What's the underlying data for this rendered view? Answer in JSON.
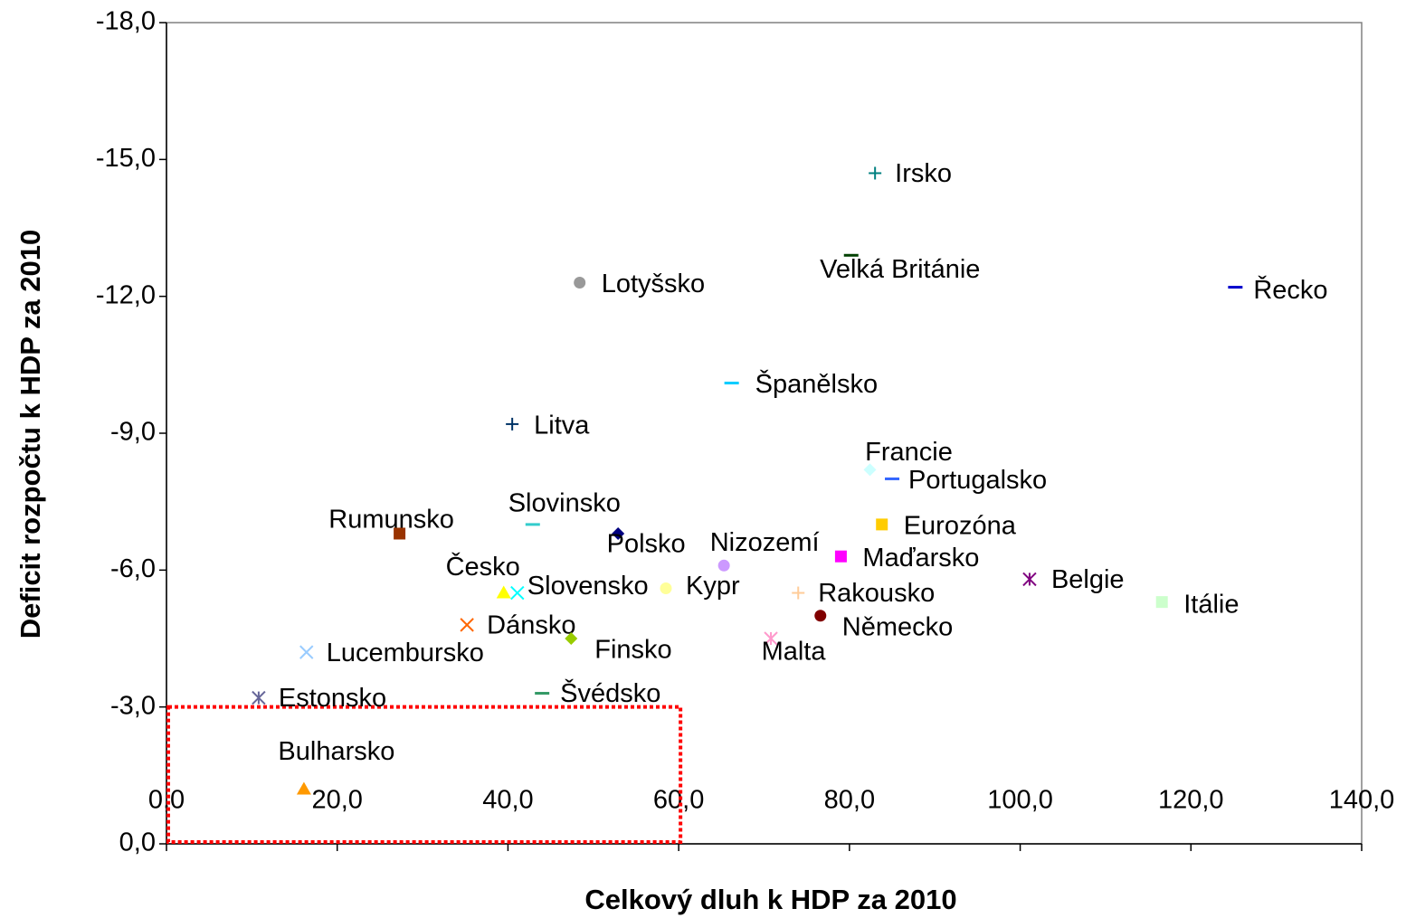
{
  "chart_data": {
    "type": "scatter",
    "xlabel": "Celkový dluh k HDP za 2010",
    "ylabel": "Deficit rozpočtu k HDP za 2010",
    "xlim": [
      0,
      140
    ],
    "xticks": [
      {
        "value": 0,
        "label": "0,0"
      },
      {
        "value": 20,
        "label": "20,0"
      },
      {
        "value": 40,
        "label": "40,0"
      },
      {
        "value": 60,
        "label": "60,0"
      },
      {
        "value": 80,
        "label": "80,0"
      },
      {
        "value": 100,
        "label": "100,0"
      },
      {
        "value": 120,
        "label": "120,0"
      },
      {
        "value": 140,
        "label": "140,0"
      }
    ],
    "ylim": [
      0,
      -18
    ],
    "yticks": [
      {
        "value": 0,
        "label": "0,0"
      },
      {
        "value": -3,
        "label": "-3,0"
      },
      {
        "value": -6,
        "label": "-6,0"
      },
      {
        "value": -9,
        "label": "-9,0"
      },
      {
        "value": -12,
        "label": "-12,0"
      },
      {
        "value": -15,
        "label": "-15,0"
      },
      {
        "value": -18,
        "label": "-18,0"
      }
    ],
    "highlight": {
      "x": [
        0,
        60
      ],
      "y": [
        0,
        -3
      ],
      "color": "#ff0000"
    },
    "series": [
      {
        "name": "Irsko",
        "color": "#008080",
        "marker": "plus",
        "x": [
          83.0
        ],
        "values": [
          -14.7
        ]
      },
      {
        "name": "Velká Británie",
        "color": "#004000",
        "marker": "dash",
        "x": [
          80.2
        ],
        "values": [
          -12.9
        ]
      },
      {
        "name": "Řecko",
        "color": "#0000cc",
        "marker": "dash",
        "x": [
          125.2
        ],
        "values": [
          -12.2
        ]
      },
      {
        "name": "Lotyšsko",
        "color": "#999999",
        "marker": "circle",
        "x": [
          48.4
        ],
        "values": [
          -12.3
        ]
      },
      {
        "name": "Španělsko",
        "color": "#00ccff",
        "marker": "dash",
        "x": [
          66.2
        ],
        "values": [
          -10.1
        ]
      },
      {
        "name": "Litva",
        "color": "#003366",
        "marker": "plus",
        "x": [
          40.5
        ],
        "values": [
          -9.2
        ]
      },
      {
        "name": "Francie",
        "color": "#ccffff",
        "marker": "diamond",
        "x": [
          82.4
        ],
        "values": [
          -8.2
        ]
      },
      {
        "name": "Portugalsko",
        "color": "#3366ff",
        "marker": "dash",
        "x": [
          85.0
        ],
        "values": [
          -8.0
        ]
      },
      {
        "name": "Slovinsko",
        "color": "#33cccc",
        "marker": "dash",
        "x": [
          42.9
        ],
        "values": [
          -7.0
        ]
      },
      {
        "name": "Rumunsko",
        "color": "#993300",
        "marker": "square",
        "x": [
          27.3
        ],
        "values": [
          -6.8
        ]
      },
      {
        "name": "Polsko",
        "color": "#000080",
        "marker": "diamond",
        "x": [
          52.9
        ],
        "values": [
          -6.8
        ]
      },
      {
        "name": "Eurozóna",
        "color": "#ffcc00",
        "marker": "square",
        "x": [
          83.8
        ],
        "values": [
          -7.0
        ]
      },
      {
        "name": "Maďarsko",
        "color": "#ff00ff",
        "marker": "square",
        "x": [
          79.0
        ],
        "values": [
          -6.3
        ]
      },
      {
        "name": "Nizozemí",
        "color": "#cc99ff",
        "marker": "circle",
        "x": [
          65.3
        ],
        "values": [
          -6.1
        ]
      },
      {
        "name": "Belgie",
        "color": "#800080",
        "marker": "asterisk",
        "x": [
          101.1
        ],
        "values": [
          -5.8
        ]
      },
      {
        "name": "Kypr",
        "color": "#ffff99",
        "marker": "circle",
        "x": [
          58.5
        ],
        "values": [
          -5.6
        ]
      },
      {
        "name": "Česko",
        "color": "#ffff00",
        "marker": "triangle",
        "x": [
          39.5
        ],
        "values": [
          -5.5
        ]
      },
      {
        "name": "Slovensko",
        "color": "#00ffff",
        "marker": "cross",
        "x": [
          41.1
        ],
        "values": [
          -5.5
        ]
      },
      {
        "name": "Rakousko",
        "color": "#ffcc99",
        "marker": "plus",
        "x": [
          74.0
        ],
        "values": [
          -5.5
        ]
      },
      {
        "name": "Itálie",
        "color": "#ccffcc",
        "marker": "square",
        "x": [
          116.6
        ],
        "values": [
          -5.3
        ]
      },
      {
        "name": "Německo",
        "color": "#800000",
        "marker": "circle",
        "x": [
          76.6
        ],
        "values": [
          -5.0
        ]
      },
      {
        "name": "Dánsko",
        "color": "#ff6600",
        "marker": "cross",
        "x": [
          35.2
        ],
        "values": [
          -4.8
        ]
      },
      {
        "name": "Finsko",
        "color": "#99cc00",
        "marker": "diamond",
        "x": [
          47.4
        ],
        "values": [
          -4.5
        ]
      },
      {
        "name": "Malta",
        "color": "#ff99cc",
        "marker": "asterisk",
        "x": [
          70.8
        ],
        "values": [
          -4.5
        ]
      },
      {
        "name": "Lucembursko",
        "color": "#99ccff",
        "marker": "cross",
        "x": [
          16.4
        ],
        "values": [
          -4.2
        ]
      },
      {
        "name": "Švédsko",
        "color": "#339966",
        "marker": "dash",
        "x": [
          44.0
        ],
        "values": [
          -3.3
        ]
      },
      {
        "name": "Estonsko",
        "color": "#666699",
        "marker": "asterisk",
        "x": [
          10.8
        ],
        "values": [
          -3.2
        ]
      },
      {
        "name": "Bulharsko",
        "color": "#ff9900",
        "marker": "triangle",
        "x": [
          16.1
        ],
        "values": [
          -1.2
        ]
      }
    ]
  }
}
